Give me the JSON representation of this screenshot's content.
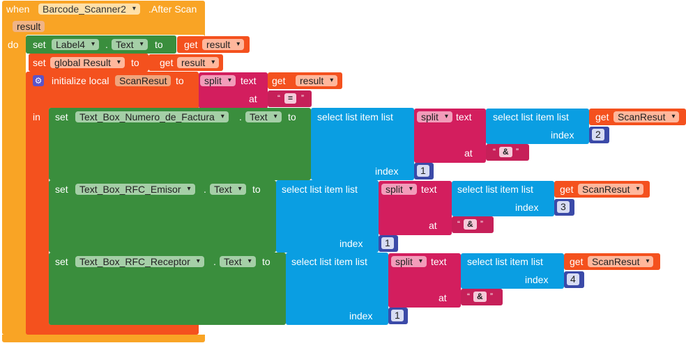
{
  "event": {
    "when": "when",
    "component": "Barcode_Scanner2",
    "event_name": ".After Scan",
    "param": "result",
    "do": "do"
  },
  "stmt1": {
    "set": "set",
    "component": "Label4",
    "dot": ".",
    "property": "Text",
    "to": "to",
    "get": "get",
    "var": "result"
  },
  "stmt2": {
    "set": "set",
    "var": "global Result",
    "to": "to",
    "get": "get",
    "value": "result"
  },
  "local": {
    "label": "initialize local",
    "name": "ScanResut",
    "to": "to",
    "split": "split",
    "text": "text",
    "at": "at",
    "get": "get",
    "var": "result",
    "sep": "=",
    "in": "in"
  },
  "rows": [
    {
      "set": "set",
      "component": "Text_Box_Numero_de_Factura",
      "dot": ".",
      "property": "Text",
      "to": "to",
      "select": "select list item  list",
      "split": "split",
      "text": "text",
      "inner_select": "select list item  list",
      "get": "get",
      "var": "ScanResut",
      "index_label": "index",
      "inner_index": "2",
      "at": "at",
      "sep": "&",
      "outer_index": "1"
    },
    {
      "set": "set",
      "component": "Text_Box_RFC_Emisor",
      "dot": ".",
      "property": "Text",
      "to": "to",
      "select": "select list item  list",
      "split": "split",
      "text": "text",
      "inner_select": "select list item  list",
      "get": "get",
      "var": "ScanResut",
      "index_label": "index",
      "inner_index": "3",
      "at": "at",
      "sep": "&",
      "outer_index": "1"
    },
    {
      "set": "set",
      "component": "Text_Box_RFC_Receptor",
      "dot": ".",
      "property": "Text",
      "to": "to",
      "select": "select list item  list",
      "split": "split",
      "text": "text",
      "inner_select": "select list item  list",
      "get": "get",
      "var": "ScanResut",
      "index_label": "index",
      "inner_index": "4",
      "at": "at",
      "sep": "&",
      "outer_index": "1"
    }
  ],
  "colors": {
    "event": "#f9a425",
    "variables": "#f4511e",
    "component": "#3a8e3d",
    "lists": "#0a9ee2",
    "text": "#d31e5e",
    "math": "#3b4aa8"
  }
}
